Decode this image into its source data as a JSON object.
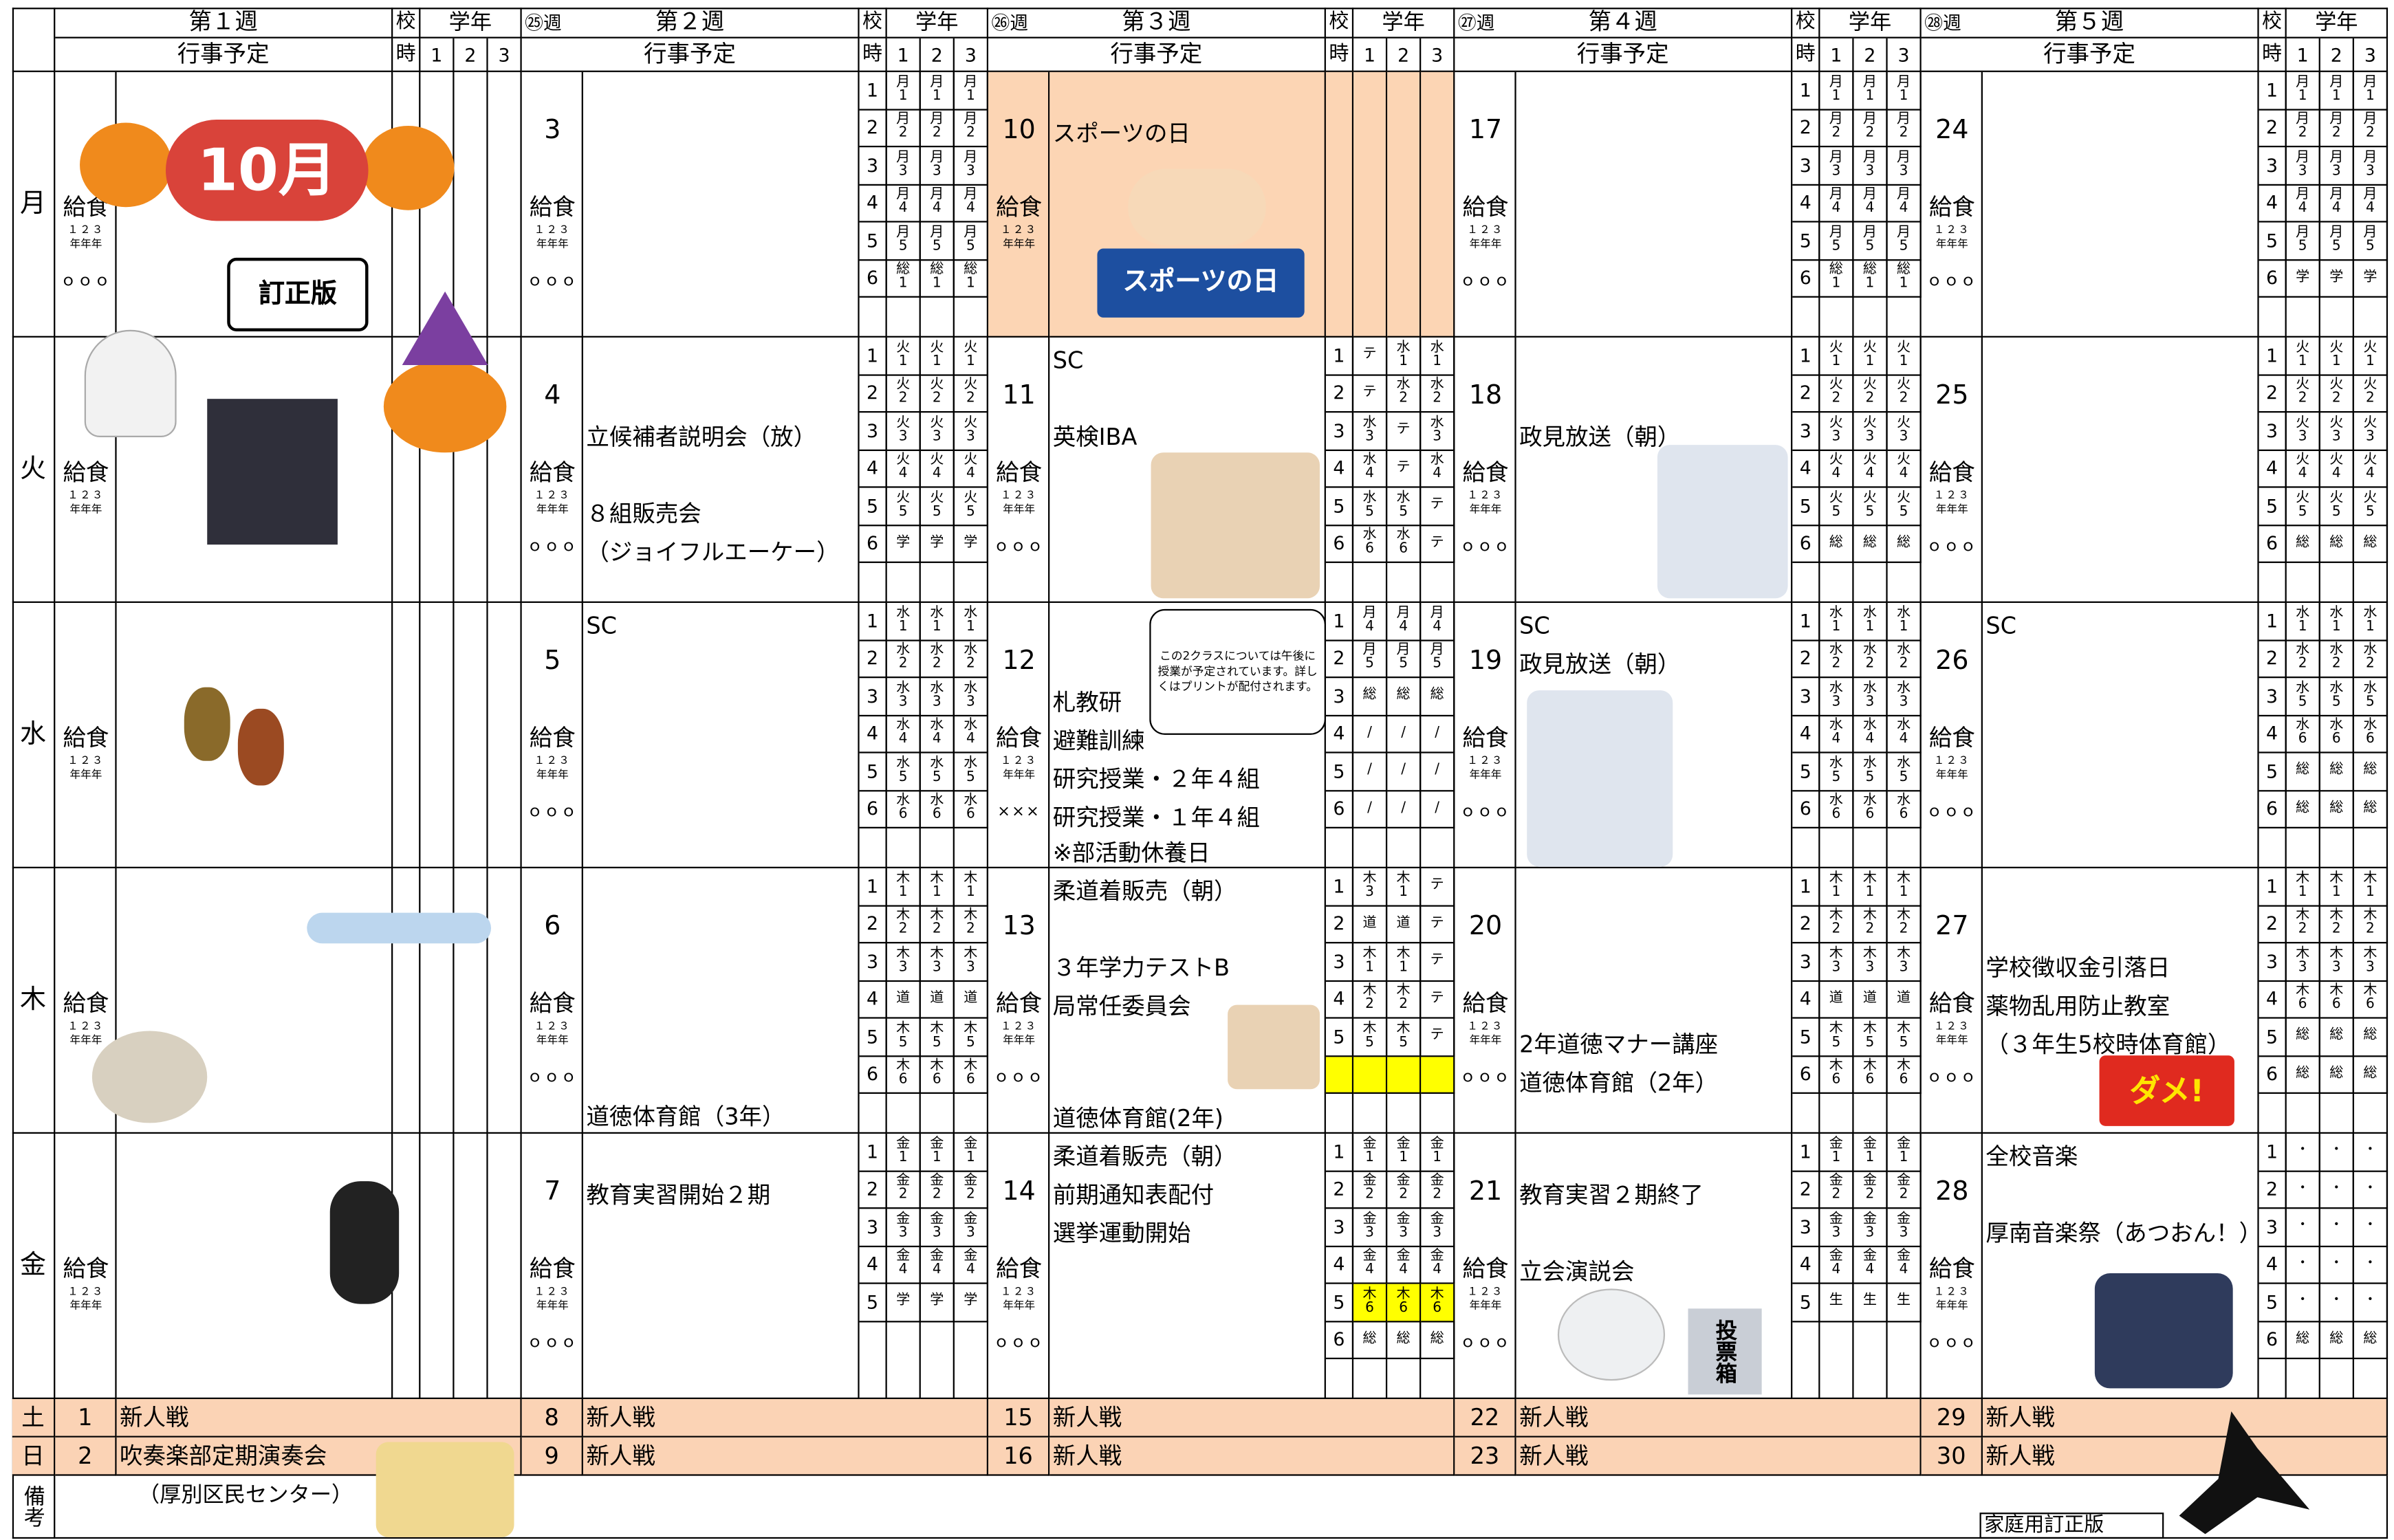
{
  "day_labels": [
    "月",
    "火",
    "水",
    "木",
    "金",
    "土",
    "日"
  ],
  "remarks_label": "備考",
  "header": {
    "schedule": "行事予定",
    "period_top": "校",
    "period_bottom": "時",
    "grade": "学年",
    "classes": [
      "1",
      "2",
      "3"
    ]
  },
  "lunch_label": "給食",
  "grade_numbers": "１２３",
  "grade_suffix": "年年年",
  "period_numbers": [
    "1",
    "2",
    "3",
    "4",
    "5",
    "6"
  ],
  "holiday_color": "#fcd5b4",
  "weekend_color": "#fbd3b5",
  "highlight_color": "#ffff00",
  "weeks": [
    {
      "title": "第１週",
      "days": [
        {
          "lunch": "ｏｏｏ"
        },
        {},
        {},
        {},
        {}
      ],
      "weekend": [
        {
          "date": 1,
          "event": "新人戦"
        },
        {
          "date": 2,
          "event": "吹奏楽部定期演奏会"
        }
      ]
    },
    {
      "title": "第２週",
      "marker": "㉕週",
      "days": [
        {
          "date": 3,
          "lunch": "ｏｏｏ",
          "periods": [
            [
              "月\n1",
              "月\n1",
              "月\n1"
            ],
            [
              "月\n2",
              "月\n2",
              "月\n2"
            ],
            [
              "月\n3",
              "月\n3",
              "月\n3"
            ],
            [
              "月\n4",
              "月\n4",
              "月\n4"
            ],
            [
              "月\n5",
              "月\n5",
              "月\n5"
            ],
            [
              "総\n1",
              "総\n1",
              "総\n1"
            ]
          ]
        },
        {
          "date": 4,
          "lunch": "ｏｏｏ",
          "events": [
            "立候補者説明会（放）",
            "８組販売会",
            "（ジョイフルエーケー）"
          ],
          "periods": [
            [
              "火\n1",
              "火\n1",
              "火\n1"
            ],
            [
              "火\n2",
              "火\n2",
              "火\n2"
            ],
            [
              "火\n3",
              "火\n3",
              "火\n3"
            ],
            [
              "火\n4",
              "火\n4",
              "火\n4"
            ],
            [
              "火\n5",
              "火\n5",
              "火\n5"
            ],
            [
              "学",
              "学",
              "学"
            ]
          ]
        },
        {
          "date": 5,
          "lunch": "ｏｏｏ",
          "events": [
            "SC"
          ],
          "periods": [
            [
              "水\n1",
              "水\n1",
              "水\n1"
            ],
            [
              "水\n2",
              "水\n2",
              "水\n2"
            ],
            [
              "水\n3",
              "水\n3",
              "水\n3"
            ],
            [
              "水\n4",
              "水\n4",
              "水\n4"
            ],
            [
              "水\n5",
              "水\n5",
              "水\n5"
            ],
            [
              "水\n6",
              "水\n6",
              "水\n6"
            ]
          ]
        },
        {
          "date": 6,
          "lunch": "ｏｏｏ",
          "events": [
            "道徳体育館（3年）"
          ],
          "periods": [
            [
              "木\n1",
              "木\n1",
              "木\n1"
            ],
            [
              "木\n2",
              "木\n2",
              "木\n2"
            ],
            [
              "木\n3",
              "木\n3",
              "木\n3"
            ],
            [
              "道",
              "道",
              "道"
            ],
            [
              "木\n5",
              "木\n5",
              "木\n5"
            ],
            [
              "木\n6",
              "木\n6",
              "木\n6"
            ]
          ]
        },
        {
          "date": 7,
          "lunch": "ｏｏｏ",
          "events": [
            "教育実習開始２期"
          ],
          "periods": [
            [
              "金\n1",
              "金\n1",
              "金\n1"
            ],
            [
              "金\n2",
              "金\n2",
              "金\n2"
            ],
            [
              "金\n3",
              "金\n3",
              "金\n3"
            ],
            [
              "金\n4",
              "金\n4",
              "金\n4"
            ],
            [
              "学",
              "学",
              "学"
            ]
          ]
        }
      ],
      "weekend": [
        {
          "date": 8,
          "event": "新人戦"
        },
        {
          "date": 9,
          "event": "新人戦"
        }
      ]
    },
    {
      "title": "第３週",
      "marker": "㉖週",
      "days": [
        {
          "date": 10,
          "holiday": true,
          "events": [
            "スポーツの日"
          ]
        },
        {
          "date": 11,
          "lunch": "ｏｏｏ",
          "events": [
            "SC",
            "英検IBA"
          ],
          "periods": [
            [
              "テ",
              "水\n1",
              "水\n1"
            ],
            [
              "テ",
              "水\n2",
              "水\n2"
            ],
            [
              "水\n3",
              "テ",
              "水\n3"
            ],
            [
              "水\n4",
              "テ",
              "水\n4"
            ],
            [
              "水\n5",
              "水\n5",
              "テ"
            ],
            [
              "水\n6",
              "水\n6",
              "テ"
            ]
          ]
        },
        {
          "date": 12,
          "lunch": "×××",
          "events": [
            "札教研",
            "避難訓練",
            "研究授業・２年４組",
            "研究授業・１年４組",
            "※部活動休養日"
          ],
          "bubble": "この2クラスについては午後に授業が予定されています。詳しくはプリントが配付されます。",
          "periods": [
            [
              "月\n4",
              "月\n4",
              "月\n4"
            ],
            [
              "月\n5",
              "月\n5",
              "月\n5"
            ],
            [
              "総",
              "総",
              "総"
            ],
            [
              "/",
              "/",
              "/"
            ],
            [
              "/",
              "/",
              "/"
            ],
            [
              "/",
              "/",
              "/"
            ]
          ]
        },
        {
          "date": 13,
          "lunch": "ｏｏｏ",
          "events": [
            "柔道着販売（朝）",
            "３年学力テストB",
            "局常任委員会",
            "道徳体育館(2年)"
          ],
          "periods": [
            [
              "木\n3",
              "木\n1",
              "テ"
            ],
            [
              "道",
              "道",
              "テ"
            ],
            [
              "木\n1",
              "木\n1",
              "テ"
            ],
            [
              "木\n2",
              "木\n2",
              "テ"
            ],
            [
              "木\n5",
              "木\n5",
              "テ"
            ]
          ],
          "highlight_rows": [
            5
          ]
        },
        {
          "date": 14,
          "lunch": "ｏｏｏ",
          "events": [
            "柔道着販売（朝）",
            "前期通知表配付",
            "選挙運動開始"
          ],
          "periods": [
            [
              "金\n1",
              "金\n1",
              "金\n1"
            ],
            [
              "金\n2",
              "金\n2",
              "金\n2"
            ],
            [
              "金\n3",
              "金\n3",
              "金\n3"
            ],
            [
              "金\n4",
              "金\n4",
              "金\n4"
            ],
            [
              "木\n6",
              "木\n6",
              "木\n6"
            ],
            [
              "総",
              "総",
              "総"
            ]
          ],
          "highlight_rows": [
            4
          ]
        }
      ],
      "weekend": [
        {
          "date": 15,
          "event": "新人戦"
        },
        {
          "date": 16,
          "event": "新人戦"
        }
      ]
    },
    {
      "title": "第４週",
      "marker": "㉗週",
      "days": [
        {
          "date": 17,
          "lunch": "ｏｏｏ",
          "periods": [
            [
              "月\n1",
              "月\n1",
              "月\n1"
            ],
            [
              "月\n2",
              "月\n2",
              "月\n2"
            ],
            [
              "月\n3",
              "月\n3",
              "月\n3"
            ],
            [
              "月\n4",
              "月\n4",
              "月\n4"
            ],
            [
              "月\n5",
              "月\n5",
              "月\n5"
            ],
            [
              "総\n1",
              "総\n1",
              "総\n1"
            ]
          ]
        },
        {
          "date": 18,
          "lunch": "ｏｏｏ",
          "events": [
            "政見放送（朝）"
          ],
          "periods": [
            [
              "火\n1",
              "火\n1",
              "火\n1"
            ],
            [
              "火\n2",
              "火\n2",
              "火\n2"
            ],
            [
              "火\n3",
              "火\n3",
              "火\n3"
            ],
            [
              "火\n4",
              "火\n4",
              "火\n4"
            ],
            [
              "火\n5",
              "火\n5",
              "火\n5"
            ],
            [
              "総",
              "総",
              "総"
            ]
          ]
        },
        {
          "date": 19,
          "lunch": "ｏｏｏ",
          "events": [
            "SC",
            "政見放送（朝）"
          ],
          "periods": [
            [
              "水\n1",
              "水\n1",
              "水\n1"
            ],
            [
              "水\n2",
              "水\n2",
              "水\n2"
            ],
            [
              "水\n3",
              "水\n3",
              "水\n3"
            ],
            [
              "水\n4",
              "水\n4",
              "水\n4"
            ],
            [
              "水\n5",
              "水\n5",
              "水\n5"
            ],
            [
              "水\n6",
              "水\n6",
              "水\n6"
            ]
          ]
        },
        {
          "date": 20,
          "lunch": "ｏｏｏ",
          "events": [
            "2年道徳マナー講座",
            "道徳体育館（2年）"
          ],
          "periods": [
            [
              "木\n1",
              "木\n1",
              "木\n1"
            ],
            [
              "木\n2",
              "木\n2",
              "木\n2"
            ],
            [
              "木\n3",
              "木\n3",
              "木\n3"
            ],
            [
              "道",
              "道",
              "道"
            ],
            [
              "木\n5",
              "木\n5",
              "木\n5"
            ],
            [
              "木\n6",
              "木\n6",
              "木\n6"
            ]
          ]
        },
        {
          "date": 21,
          "lunch": "ｏｏｏ",
          "events": [
            "教育実習２期終了",
            "立会演説会"
          ],
          "periods": [
            [
              "金\n1",
              "金\n1",
              "金\n1"
            ],
            [
              "金\n2",
              "金\n2",
              "金\n2"
            ],
            [
              "金\n3",
              "金\n3",
              "金\n3"
            ],
            [
              "金\n4",
              "金\n4",
              "金\n4"
            ],
            [
              "生",
              "生",
              "生"
            ]
          ]
        }
      ],
      "weekend": [
        {
          "date": 22,
          "event": "新人戦"
        },
        {
          "date": 23,
          "event": "新人戦"
        }
      ]
    },
    {
      "title": "第５週",
      "marker": "㉘週",
      "days": [
        {
          "date": 24,
          "lunch": "ｏｏｏ",
          "periods": [
            [
              "月\n1",
              "月\n1",
              "月\n1"
            ],
            [
              "月\n2",
              "月\n2",
              "月\n2"
            ],
            [
              "月\n3",
              "月\n3",
              "月\n3"
            ],
            [
              "月\n4",
              "月\n4",
              "月\n4"
            ],
            [
              "月\n5",
              "月\n5",
              "月\n5"
            ],
            [
              "学",
              "学",
              "学"
            ]
          ]
        },
        {
          "date": 25,
          "lunch": "ｏｏｏ",
          "periods": [
            [
              "火\n1",
              "火\n1",
              "火\n1"
            ],
            [
              "火\n2",
              "火\n2",
              "火\n2"
            ],
            [
              "火\n3",
              "火\n3",
              "火\n3"
            ],
            [
              "火\n4",
              "火\n4",
              "火\n4"
            ],
            [
              "火\n5",
              "火\n5",
              "火\n5"
            ],
            [
              "総",
              "総",
              "総"
            ]
          ]
        },
        {
          "date": 26,
          "lunch": "ｏｏｏ",
          "events": [
            "SC"
          ],
          "periods": [
            [
              "水\n1",
              "水\n1",
              "水\n1"
            ],
            [
              "水\n2",
              "水\n2",
              "水\n2"
            ],
            [
              "水\n5",
              "水\n5",
              "水\n5"
            ],
            [
              "水\n6",
              "水\n6",
              "水\n6"
            ],
            [
              "総",
              "総",
              "総"
            ],
            [
              "総",
              "総",
              "総"
            ]
          ]
        },
        {
          "date": 27,
          "lunch": "ｏｏｏ",
          "events": [
            "学校徴収金引落日",
            "薬物乱用防止教室",
            "（３年生5校時体育館）"
          ],
          "periods": [
            [
              "木\n1",
              "木\n1",
              "木\n1"
            ],
            [
              "木\n2",
              "木\n2",
              "木\n2"
            ],
            [
              "木\n3",
              "木\n3",
              "木\n3"
            ],
            [
              "木\n6",
              "木\n6",
              "木\n6"
            ],
            [
              "総",
              "総",
              "総"
            ],
            [
              "総",
              "総",
              "総"
            ]
          ]
        },
        {
          "date": 28,
          "lunch": "ｏｏｏ",
          "events": [
            "全校音楽",
            "厚南音楽祭（あつおん！）"
          ],
          "periods": [
            [
              "・",
              "・",
              "・"
            ],
            [
              "・",
              "・",
              "・"
            ],
            [
              "・",
              "・",
              "・"
            ],
            [
              "・",
              "・",
              "・"
            ],
            [
              "・",
              "・",
              "・"
            ],
            [
              "総",
              "総",
              "総"
            ]
          ]
        }
      ],
      "weekend": [
        {
          "date": 29,
          "event": "新人戦"
        },
        {
          "date": 30,
          "event": "新人戦"
        }
      ]
    }
  ],
  "remarks": {
    "venue": "（厚別区民センター）",
    "edition": "家庭用訂正版"
  },
  "illustrations": {
    "october": "10月",
    "corrected": "訂正版",
    "sports_banner": "スポーツの日",
    "dame": "ダメ!",
    "ballot": "投票箱"
  }
}
